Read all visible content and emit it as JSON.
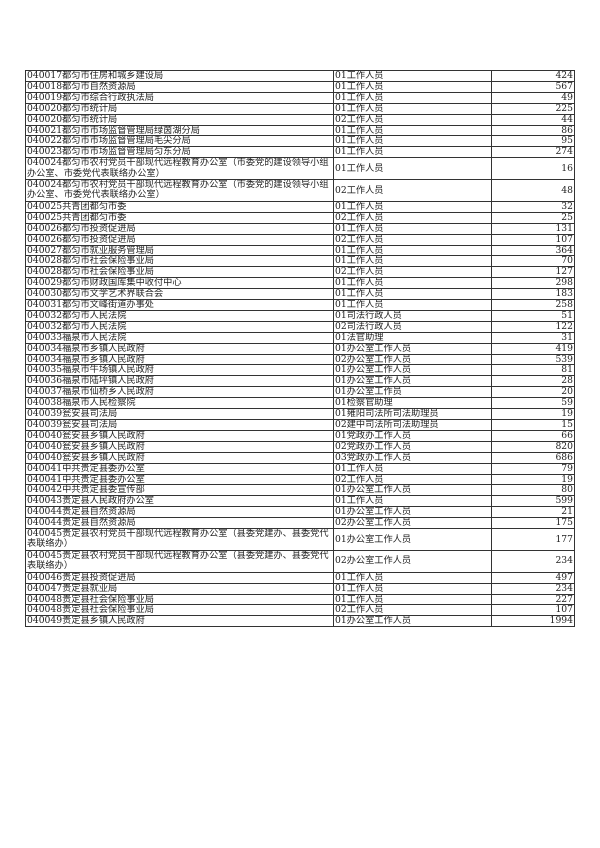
{
  "table": {
    "rows": [
      [
        "040017都匀市住房和城乡建设局",
        "01工作人员",
        "424"
      ],
      [
        "040018都匀市自然资源局",
        "01工作人员",
        "567"
      ],
      [
        "040019都匀市综合行政执法局",
        "01工作人员",
        "49"
      ],
      [
        "040020都匀市统计局",
        "01工作人员",
        "225"
      ],
      [
        "040020都匀市统计局",
        "02工作人员",
        "44"
      ],
      [
        "040021都匀市市场监督管理局绿茵湖分局",
        "01工作人员",
        "86"
      ],
      [
        "040022都匀市市场监督管理局毛尖分局",
        "01工作人员",
        "95"
      ],
      [
        "040023都匀市市场监督管理局匀东分局",
        "01工作人员",
        "274"
      ],
      [
        "040024都匀市农村党员干部现代远程教育办公室（市委党的建设领导小组办公室、市委党代表联络办公室）",
        "01工作人员",
        "16"
      ],
      [
        "040024都匀市农村党员干部现代远程教育办公室（市委党的建设领导小组办公室、市委党代表联络办公室）",
        "02工作人员",
        "48"
      ],
      [
        "040025共青团都匀市委",
        "01工作人员",
        "32"
      ],
      [
        "040025共青团都匀市委",
        "02工作人员",
        "25"
      ],
      [
        "040026都匀市投资促进局",
        "01工作人员",
        "131"
      ],
      [
        "040026都匀市投资促进局",
        "02工作人员",
        "107"
      ],
      [
        "040027都匀市就业服务管理局",
        "01工作人员",
        "364"
      ],
      [
        "040028都匀市社会保险事业局",
        "01工作人员",
        "70"
      ],
      [
        "040028都匀市社会保险事业局",
        "02工作人员",
        "127"
      ],
      [
        "040029都匀市财政国库集中收付中心",
        "01工作人员",
        "298"
      ],
      [
        "040030都匀市文学艺术界联合会",
        "01工作人员",
        "183"
      ],
      [
        "040031都匀市文峰街道办事处",
        "01工作人员",
        "258"
      ],
      [
        "040032都匀市人民法院",
        "01司法行政人员",
        "51"
      ],
      [
        "040032都匀市人民法院",
        "02司法行政人员",
        "122"
      ],
      [
        "040033福泉市人民法院",
        "01法官助理",
        "31"
      ],
      [
        "040034福泉市乡镇人民政府",
        "01办公室工作人员",
        "419"
      ],
      [
        "040034福泉市乡镇人民政府",
        "02办公室工作人员",
        "539"
      ],
      [
        "040035福泉市牛场镇人民政府",
        "01办公室工作人员",
        "81"
      ],
      [
        "040036福泉市陆坪镇人民政府",
        "01办公室工作人员",
        "28"
      ],
      [
        "040037福泉市仙桥乡人民政府",
        "01办公室工作员",
        "20"
      ],
      [
        "040038福泉市人民检察院",
        "01检察官助理",
        "59"
      ],
      [
        "040039瓮安县司法局",
        "01雍阳司法所司法助理员",
        "19"
      ],
      [
        "040039瓮安县司法局",
        "02建中司法所司法助理员",
        "15"
      ],
      [
        "040040瓮安县乡镇人民政府",
        "01党政办工作人员",
        "66"
      ],
      [
        "040040瓮安县乡镇人民政府",
        "02党政办工作人员",
        "820"
      ],
      [
        "040040瓮安县乡镇人民政府",
        "03党政办工作人员",
        "686"
      ],
      [
        "040041中共贵定县委办公室",
        "01工作人员",
        "79"
      ],
      [
        "040041中共贵定县委办公室",
        "02工作人员",
        "19"
      ],
      [
        "040042中共贵定县委宣传部",
        "01办公室工作人员",
        "80"
      ],
      [
        "040043贵定县人民政府办公室",
        "01工作人员",
        "599"
      ],
      [
        "040044贵定县自然资源局",
        "01办公室工作人员",
        "21"
      ],
      [
        "040044贵定县自然资源局",
        "02办公室工作人员",
        "175"
      ],
      [
        "040045贵定县农村党员干部现代远程教育办公室（县委党建办、县委党代表联络办）",
        "01办公室工作人员",
        "177"
      ],
      [
        "040045贵定县农村党员干部现代远程教育办公室（县委党建办、县委党代表联络办）",
        "02办公室工作人员",
        "234"
      ],
      [
        "040046贵定县投资促进局",
        "01工作人员",
        "497"
      ],
      [
        "040047贵定县就业局",
        "01工作人员",
        "234"
      ],
      [
        "040048贵定县社会保险事业局",
        "01工作人员",
        "227"
      ],
      [
        "040048贵定县社会保险事业局",
        "02工作人员",
        "107"
      ],
      [
        "040049贵定县乡镇人民政府",
        "01办公室工作人员",
        "1994"
      ]
    ]
  }
}
